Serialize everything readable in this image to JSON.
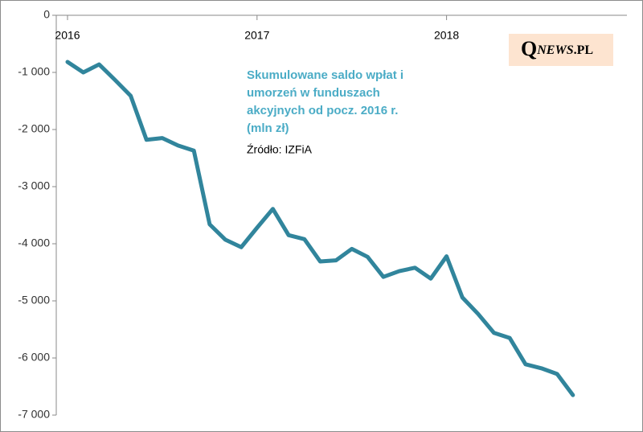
{
  "chart_data": {
    "type": "line",
    "title": [
      "Skumulowane saldo wpłat i",
      "umorzeń w funduszach",
      "akcyjnych od pocz. 2016 r.",
      "(mln zł)"
    ],
    "source": "Źródło: IZFiA",
    "logo": [
      "Q",
      "NEWS",
      ".PL"
    ],
    "categories": [
      "2016",
      null,
      null,
      null,
      null,
      null,
      null,
      null,
      null,
      null,
      null,
      null,
      "2017",
      null,
      null,
      null,
      null,
      null,
      null,
      null,
      null,
      null,
      null,
      null,
      "2018",
      null,
      null,
      null,
      null,
      null,
      null,
      null,
      null
    ],
    "series": [
      {
        "name": "saldo",
        "color": "#31859c",
        "values": [
          -817,
          -1000,
          -860,
          -1130,
          -1410,
          -2180,
          -2150,
          -2280,
          -2370,
          -3660,
          -3930,
          -4060,
          -3720,
          -3390,
          -3850,
          -3920,
          -4310,
          -4290,
          -4090,
          -4230,
          -4580,
          -4480,
          -4420,
          -4610,
          -4220,
          -4940,
          -5230,
          -5560,
          -5650,
          -6110,
          -6180,
          -6280,
          -6650
        ]
      }
    ],
    "ylim": [
      -7000,
      0
    ],
    "yticks": [
      0,
      {
        "value": -1000,
        "label": "-1 000"
      },
      {
        "value": -2000,
        "label": "-2 000"
      },
      {
        "value": -3000,
        "label": "-3 000"
      },
      {
        "value": -4000,
        "label": "-4 000"
      },
      {
        "value": -5000,
        "label": "-5 000"
      },
      {
        "value": -6000,
        "label": "-6 000"
      },
      {
        "value": -7000,
        "label": "-7 000"
      }
    ]
  }
}
